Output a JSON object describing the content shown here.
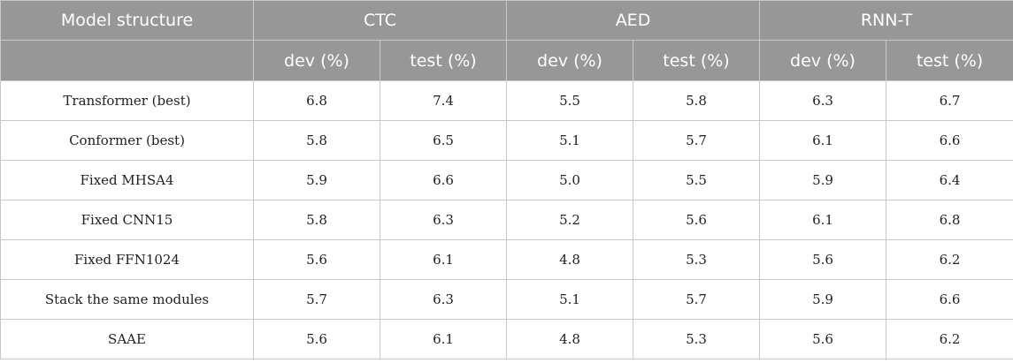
{
  "header": {
    "model_structure": "Model structure",
    "groups": [
      "CTC",
      "AED",
      "RNN-T"
    ],
    "sub": [
      "dev (%)",
      "test (%)",
      "dev (%)",
      "test (%)",
      "dev (%)",
      "test (%)"
    ]
  },
  "rows": [
    {
      "label": "Transformer (best)",
      "values": [
        "6.8",
        "7.4",
        "5.5",
        "5.8",
        "6.3",
        "6.7"
      ]
    },
    {
      "label": "Conformer (best)",
      "values": [
        "5.8",
        "6.5",
        "5.1",
        "5.7",
        "6.1",
        "6.6"
      ]
    },
    {
      "label": "Fixed MHSA4",
      "values": [
        "5.9",
        "6.6",
        "5.0",
        "5.5",
        "5.9",
        "6.4"
      ]
    },
    {
      "label": "Fixed CNN15",
      "values": [
        "5.8",
        "6.3",
        "5.2",
        "5.6",
        "6.1",
        "6.8"
      ]
    },
    {
      "label": "Fixed FFN1024",
      "values": [
        "5.6",
        "6.1",
        "4.8",
        "5.3",
        "5.6",
        "6.2"
      ]
    },
    {
      "label": "Stack the same modules",
      "values": [
        "5.7",
        "6.3",
        "5.1",
        "5.7",
        "5.9",
        "6.6"
      ]
    },
    {
      "label": "SAAE",
      "values": [
        "5.6",
        "6.1",
        "4.8",
        "5.3",
        "5.6",
        "6.2"
      ]
    }
  ]
}
